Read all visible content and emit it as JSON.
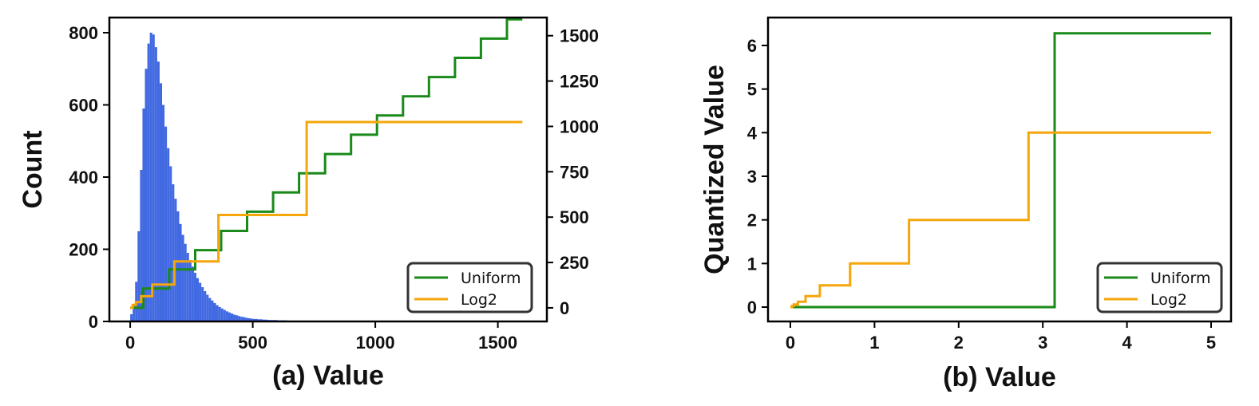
{
  "chart_data": [
    {
      "type": "histogram+step",
      "xlabel": "(a) Value",
      "ylabel": "Count",
      "xlim": [
        -85,
        1700
      ],
      "ylim": [
        0,
        800
      ],
      "y2lim": [
        -75,
        1600
      ],
      "xticks": [
        "0",
        "500",
        "1000",
        "1500"
      ],
      "yticks": [
        "0",
        "200",
        "400",
        "600",
        "800"
      ],
      "y2ticks": [
        "0",
        "250",
        "500",
        "750",
        "1000",
        "1250",
        "1500"
      ],
      "grid": false,
      "legend": "lower-right",
      "histogram": {
        "color": "#4169e1",
        "bins": [
          [
            0,
            20
          ],
          [
            10,
            45
          ],
          [
            20,
            110
          ],
          [
            30,
            250
          ],
          [
            40,
            420
          ],
          [
            50,
            590
          ],
          [
            60,
            700
          ],
          [
            70,
            770
          ],
          [
            80,
            800
          ],
          [
            90,
            795
          ],
          [
            100,
            760
          ],
          [
            110,
            720
          ],
          [
            120,
            660
          ],
          [
            130,
            600
          ],
          [
            140,
            540
          ],
          [
            150,
            480
          ],
          [
            160,
            430
          ],
          [
            170,
            380
          ],
          [
            180,
            340
          ],
          [
            190,
            305
          ],
          [
            200,
            270
          ],
          [
            210,
            240
          ],
          [
            220,
            215
          ],
          [
            230,
            190
          ],
          [
            240,
            170
          ],
          [
            250,
            152
          ],
          [
            260,
            135
          ],
          [
            270,
            120
          ],
          [
            280,
            107
          ],
          [
            290,
            95
          ],
          [
            300,
            84
          ],
          [
            310,
            74
          ],
          [
            320,
            65
          ],
          [
            330,
            58
          ],
          [
            340,
            51
          ],
          [
            350,
            45
          ],
          [
            360,
            40
          ],
          [
            370,
            36
          ],
          [
            380,
            32
          ],
          [
            390,
            28
          ],
          [
            400,
            25
          ],
          [
            410,
            22
          ],
          [
            420,
            19
          ],
          [
            430,
            17
          ],
          [
            440,
            15
          ],
          [
            450,
            13
          ],
          [
            460,
            12
          ],
          [
            470,
            10
          ],
          [
            480,
            9
          ],
          [
            490,
            8
          ],
          [
            500,
            7
          ],
          [
            520,
            6
          ],
          [
            540,
            5
          ],
          [
            560,
            4
          ],
          [
            580,
            4
          ],
          [
            600,
            3
          ],
          [
            620,
            3
          ],
          [
            640,
            2
          ],
          [
            660,
            2
          ],
          [
            680,
            2
          ],
          [
            700,
            2
          ],
          [
            720,
            1
          ],
          [
            740,
            1
          ],
          [
            760,
            1
          ],
          [
            800,
            1
          ],
          [
            850,
            1
          ],
          [
            900,
            1
          ],
          [
            950,
            1
          ],
          [
            1000,
            1
          ],
          [
            1050,
            1
          ]
        ]
      },
      "series": [
        {
          "name": "Uniform",
          "color": "#1a8a1a",
          "axis": "right",
          "step_points": [
            [
              0,
              0
            ],
            [
              53,
              0
            ],
            [
              53,
              106
            ],
            [
              159,
              106
            ],
            [
              159,
              212
            ],
            [
              265,
              212
            ],
            [
              265,
              318
            ],
            [
              371,
              318
            ],
            [
              371,
              424
            ],
            [
              477,
              424
            ],
            [
              477,
              530
            ],
            [
              583,
              530
            ],
            [
              583,
              636
            ],
            [
              689,
              636
            ],
            [
              689,
              742
            ],
            [
              795,
              742
            ],
            [
              795,
              848
            ],
            [
              901,
              848
            ],
            [
              901,
              954
            ],
            [
              1007,
              954
            ],
            [
              1007,
              1060
            ],
            [
              1113,
              1060
            ],
            [
              1113,
              1166
            ],
            [
              1219,
              1166
            ],
            [
              1219,
              1272
            ],
            [
              1325,
              1272
            ],
            [
              1325,
              1378
            ],
            [
              1431,
              1378
            ],
            [
              1431,
              1484
            ],
            [
              1537,
              1484
            ],
            [
              1537,
              1590
            ],
            [
              1600,
              1590
            ]
          ]
        },
        {
          "name": "Log2",
          "color": "#f5a60a",
          "axis": "right",
          "step_points": [
            [
              0,
              0
            ],
            [
              10,
              0
            ],
            [
              10,
              16
            ],
            [
              23,
              16
            ],
            [
              23,
              32
            ],
            [
              45,
              32
            ],
            [
              45,
              64
            ],
            [
              90,
              64
            ],
            [
              90,
              128
            ],
            [
              180,
              128
            ],
            [
              180,
              256
            ],
            [
              360,
              256
            ],
            [
              360,
              512
            ],
            [
              720,
              512
            ],
            [
              720,
              1024
            ],
            [
              1600,
              1024
            ]
          ]
        }
      ]
    },
    {
      "type": "line",
      "xlabel": "(b) Value",
      "ylabel": "Quantized Value",
      "xlim": [
        -0.25,
        5.25
      ],
      "ylim": [
        -0.3,
        6.6
      ],
      "xticks": [
        "0",
        "1",
        "2",
        "3",
        "4",
        "5"
      ],
      "yticks": [
        "0",
        "1",
        "2",
        "3",
        "4",
        "5",
        "6"
      ],
      "grid": false,
      "legend": "lower-right",
      "series": [
        {
          "name": "Uniform",
          "color": "#1a8a1a",
          "step_points": [
            [
              0,
              0
            ],
            [
              3.14,
              0
            ],
            [
              3.14,
              6.28
            ],
            [
              5,
              6.28
            ]
          ]
        },
        {
          "name": "Log2",
          "color": "#f5a60a",
          "step_points": [
            [
              0,
              0
            ],
            [
              0.02,
              0
            ],
            [
              0.02,
              0.03
            ],
            [
              0.04,
              0.03
            ],
            [
              0.04,
              0.06
            ],
            [
              0.09,
              0.06
            ],
            [
              0.09,
              0.125
            ],
            [
              0.18,
              0.125
            ],
            [
              0.18,
              0.25
            ],
            [
              0.35,
              0.25
            ],
            [
              0.35,
              0.5
            ],
            [
              0.71,
              0.5
            ],
            [
              0.71,
              1
            ],
            [
              1.41,
              1
            ],
            [
              1.41,
              2
            ],
            [
              2.83,
              2
            ],
            [
              2.83,
              4
            ],
            [
              5,
              4
            ]
          ]
        }
      ]
    }
  ]
}
